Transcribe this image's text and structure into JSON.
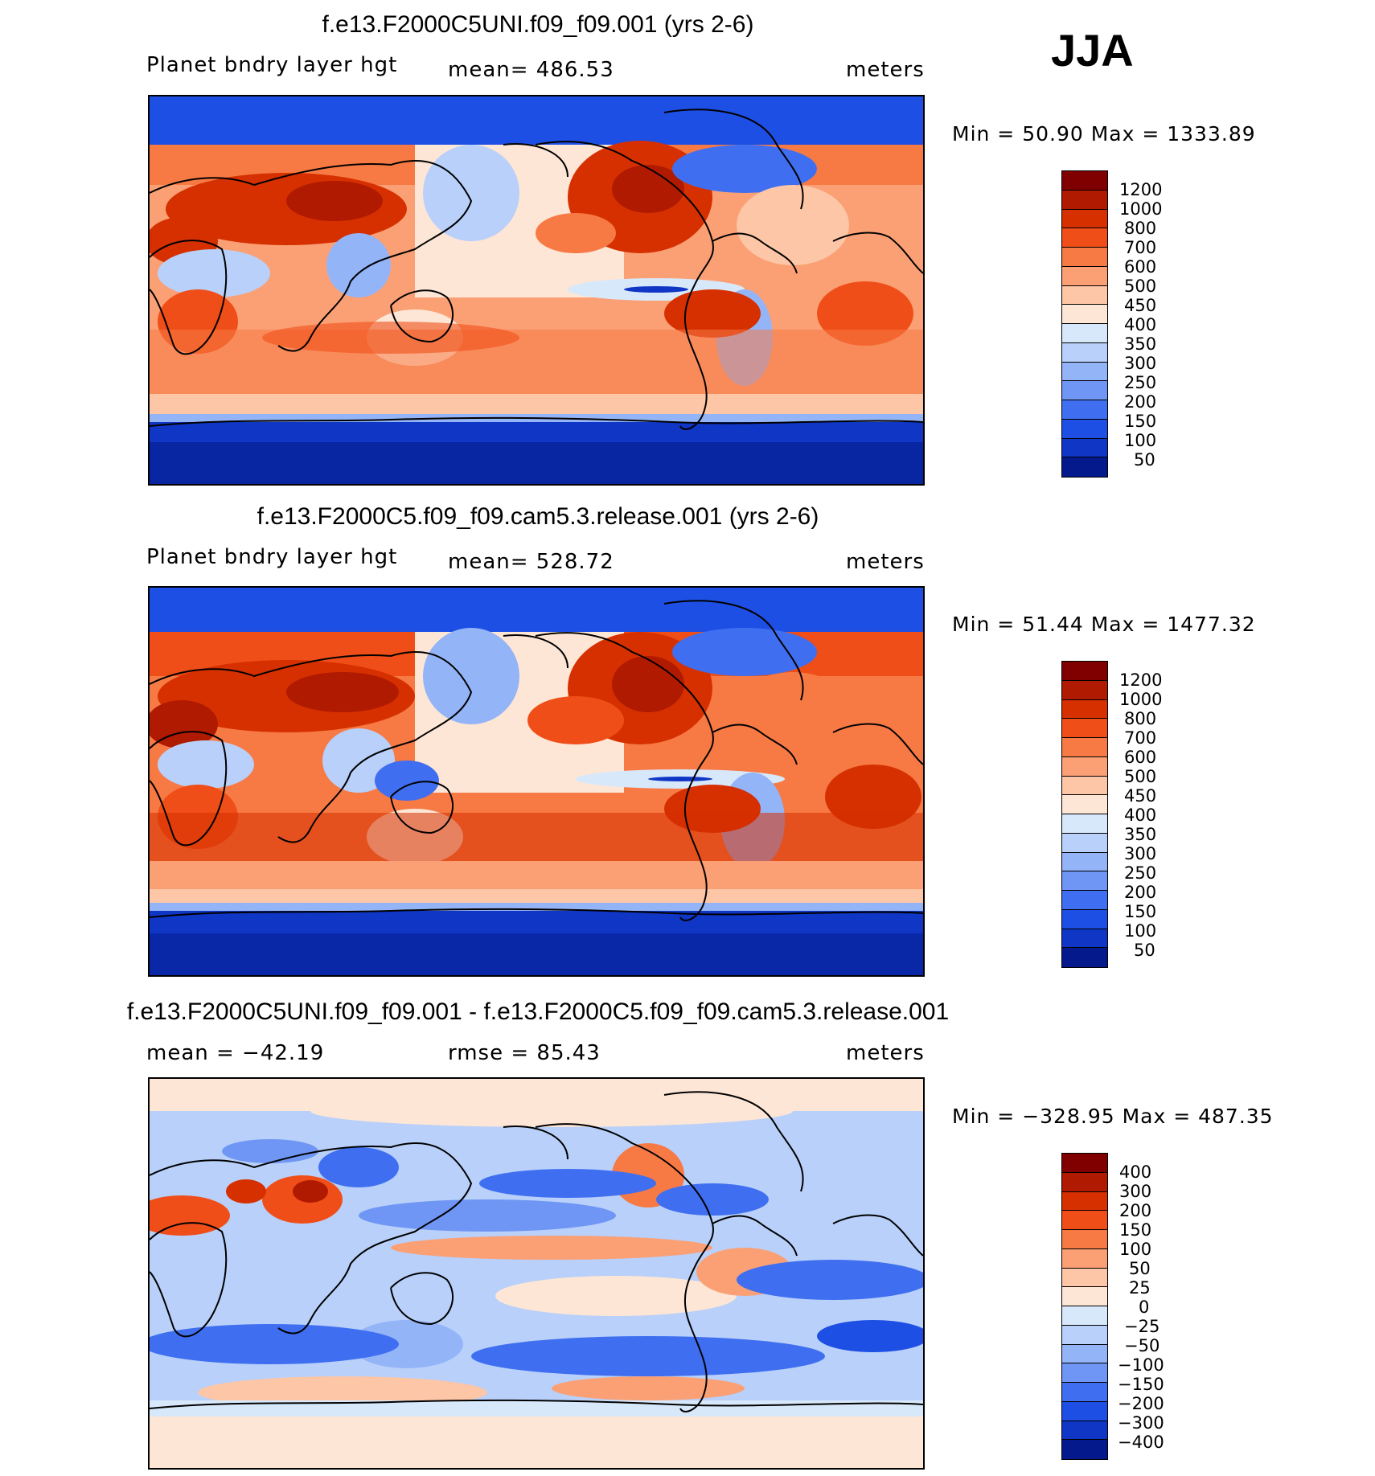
{
  "season": "JJA",
  "panels": [
    {
      "title": "f.e13.F2000C5UNI.f09_f09.001 (yrs 2-6)",
      "left_label": "Planet bndry layer hgt",
      "center_label": "mean= 486.53",
      "right_label": "meters",
      "minmax": "Min =   50.90  Max  =  1333.89"
    },
    {
      "title": "f.e13.F2000C5.f09_f09.cam5.3.release.001 (yrs 2-6)",
      "left_label": "Planet bndry layer hgt",
      "center_label": "mean= 528.72",
      "right_label": "meters",
      "minmax": "Min =   51.44  Max  =  1477.32"
    },
    {
      "title": "f.e13.F2000C5UNI.f09_f09.001 - f.e13.F2000C5.f09_f09.cam5.3.release.001",
      "left_label": "mean  =  −42.19",
      "center_label": "rmse  =    85.43",
      "right_label": "meters",
      "minmax": "Min  =  −328.95  Max  =  487.35"
    }
  ],
  "chart_data": [
    {
      "type": "heatmap",
      "title": "f.e13.F2000C5UNI.f09_f09.001 (yrs 2-6)",
      "variable": "Planet bndry layer hgt",
      "units": "meters",
      "mean": 486.53,
      "min": 50.9,
      "max": 1333.89,
      "colorbar_levels": [
        "1200",
        "1000",
        "800",
        "700",
        "600",
        "500",
        "450",
        "400",
        "350",
        "300",
        "250",
        "200",
        "150",
        "100",
        "50"
      ],
      "colorbar_colors": [
        "#800000",
        "#b01a00",
        "#d63000",
        "#f04e18",
        "#f77a45",
        "#fba075",
        "#fdc6a6",
        "#fde6d6",
        "#d7e8fb",
        "#b8d0fa",
        "#94b4f8",
        "#6f96f4",
        "#3f6ff0",
        "#1d4fe4",
        "#0f36c4",
        "#041a8c"
      ],
      "domain": "global map, longitude 0-360 (Pacific-centered), latitude -90 to 90"
    },
    {
      "type": "heatmap",
      "title": "f.e13.F2000C5.f09_f09.cam5.3.release.001 (yrs 2-6)",
      "variable": "Planet bndry layer hgt",
      "units": "meters",
      "mean": 528.72,
      "min": 51.44,
      "max": 1477.32,
      "colorbar_levels": [
        "1200",
        "1000",
        "800",
        "700",
        "600",
        "500",
        "450",
        "400",
        "350",
        "300",
        "250",
        "200",
        "150",
        "100",
        "50"
      ],
      "colorbar_colors": [
        "#800000",
        "#b01a00",
        "#d63000",
        "#f04e18",
        "#f77a45",
        "#fba075",
        "#fdc6a6",
        "#fde6d6",
        "#d7e8fb",
        "#b8d0fa",
        "#94b4f8",
        "#6f96f4",
        "#3f6ff0",
        "#1d4fe4",
        "#0f36c4",
        "#041a8c"
      ],
      "domain": "global map, longitude 0-360 (Pacific-centered), latitude -90 to 90"
    },
    {
      "type": "heatmap",
      "title": "f.e13.F2000C5UNI.f09_f09.001 - f.e13.F2000C5.f09_f09.cam5.3.release.001",
      "units": "meters",
      "mean": -42.19,
      "rmse": 85.43,
      "min": -328.95,
      "max": 487.35,
      "colorbar_levels": [
        "400",
        "300",
        "200",
        "150",
        "100",
        "50",
        "25",
        "0",
        "−25",
        "−50",
        "−100",
        "−150",
        "−200",
        "−300",
        "−400"
      ],
      "colorbar_colors": [
        "#800000",
        "#b01a00",
        "#d63000",
        "#f04e18",
        "#f77a45",
        "#fba075",
        "#fdc6a6",
        "#fde6d6",
        "#d7e8fb",
        "#b8d0fa",
        "#94b4f8",
        "#6f96f4",
        "#3f6ff0",
        "#1d4fe4",
        "#0f36c4",
        "#041a8c"
      ],
      "domain": "global map, longitude 0-360 (Pacific-centered), latitude -90 to 90"
    }
  ]
}
